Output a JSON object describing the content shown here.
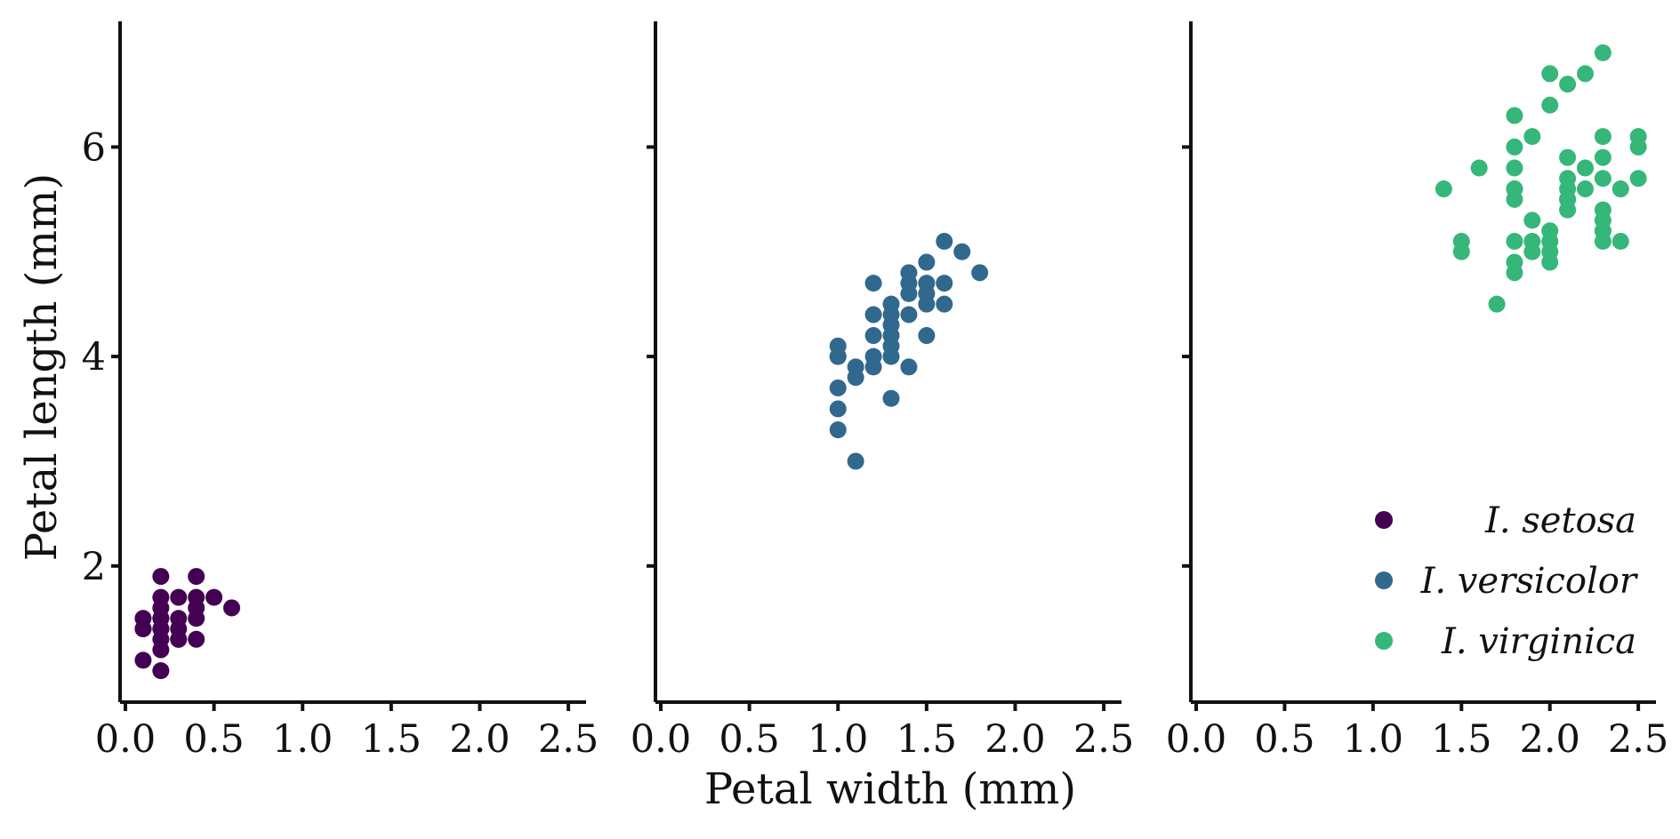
{
  "chart_data": {
    "type": "scatter",
    "xlabel": "Petal width (mm)",
    "ylabel": "Petal length (mm)",
    "xlim": [
      0,
      2.6
    ],
    "ylim": [
      0.7,
      7.2
    ],
    "xticks": [
      0.0,
      0.5,
      1.0,
      1.5,
      2.0,
      2.5
    ],
    "xtick_labels": [
      "0.0",
      "0.5",
      "1.0",
      "1.5",
      "2.0",
      "2.5"
    ],
    "yticks": [
      2,
      4,
      6
    ],
    "ytick_labels": [
      "2",
      "4",
      "6"
    ],
    "grid": false,
    "legend_position": "bottom-right",
    "series": [
      {
        "name": "I. setosa",
        "color": "#440154",
        "x": [
          0.1,
          0.1,
          0.1,
          0.1,
          0.2,
          0.2,
          0.2,
          0.2,
          0.2,
          0.2,
          0.2,
          0.2,
          0.2,
          0.2,
          0.3,
          0.3,
          0.3,
          0.3,
          0.3,
          0.4,
          0.4,
          0.4,
          0.4,
          0.4,
          0.5,
          0.6
        ],
        "y": [
          1.1,
          1.4,
          1.5,
          1.4,
          1.0,
          1.2,
          1.3,
          1.4,
          1.5,
          1.6,
          1.7,
          1.9,
          1.4,
          1.5,
          1.3,
          1.4,
          1.5,
          1.7,
          1.3,
          1.3,
          1.5,
          1.6,
          1.7,
          1.9,
          1.7,
          1.6
        ]
      },
      {
        "name": "I. versicolor",
        "color": "#31688e",
        "x": [
          1.0,
          1.0,
          1.0,
          1.0,
          1.0,
          1.0,
          1.1,
          1.1,
          1.1,
          1.2,
          1.2,
          1.2,
          1.2,
          1.2,
          1.3,
          1.3,
          1.3,
          1.3,
          1.3,
          1.3,
          1.3,
          1.4,
          1.4,
          1.4,
          1.4,
          1.4,
          1.5,
          1.5,
          1.5,
          1.5,
          1.5,
          1.6,
          1.6,
          1.6,
          1.7,
          1.8
        ],
        "y": [
          3.3,
          3.5,
          3.7,
          4.0,
          4.1,
          4.0,
          3.0,
          3.8,
          3.9,
          3.9,
          4.0,
          4.2,
          4.4,
          4.7,
          3.6,
          4.0,
          4.1,
          4.2,
          4.3,
          4.4,
          4.5,
          3.9,
          4.4,
          4.6,
          4.7,
          4.8,
          4.2,
          4.5,
          4.6,
          4.7,
          4.9,
          4.5,
          4.7,
          5.1,
          5.0,
          4.8
        ]
      },
      {
        "name": "I. virginica",
        "color": "#35b779",
        "x": [
          1.4,
          1.5,
          1.5,
          1.6,
          1.7,
          1.8,
          1.8,
          1.8,
          1.8,
          1.8,
          1.8,
          1.8,
          1.8,
          1.8,
          1.9,
          1.9,
          1.9,
          1.9,
          2.0,
          2.0,
          2.0,
          2.0,
          2.0,
          2.0,
          2.0,
          2.1,
          2.1,
          2.1,
          2.1,
          2.1,
          2.1,
          2.1,
          2.2,
          2.2,
          2.2,
          2.3,
          2.3,
          2.3,
          2.3,
          2.3,
          2.3,
          2.3,
          2.3,
          2.3,
          2.4,
          2.4,
          2.5,
          2.5,
          2.5
        ],
        "y": [
          5.6,
          5.0,
          5.1,
          5.8,
          4.5,
          4.8,
          4.9,
          5.1,
          5.5,
          5.6,
          5.8,
          6.0,
          6.3,
          5.6,
          5.0,
          5.1,
          5.3,
          6.1,
          4.9,
          5.0,
          5.1,
          5.2,
          6.4,
          6.7,
          5.1,
          5.4,
          5.5,
          5.6,
          5.7,
          5.9,
          6.6,
          5.5,
          5.6,
          5.8,
          6.7,
          5.1,
          5.2,
          5.3,
          5.4,
          5.7,
          5.9,
          6.1,
          6.9,
          5.2,
          5.1,
          5.6,
          5.7,
          6.0,
          6.1
        ]
      }
    ]
  }
}
